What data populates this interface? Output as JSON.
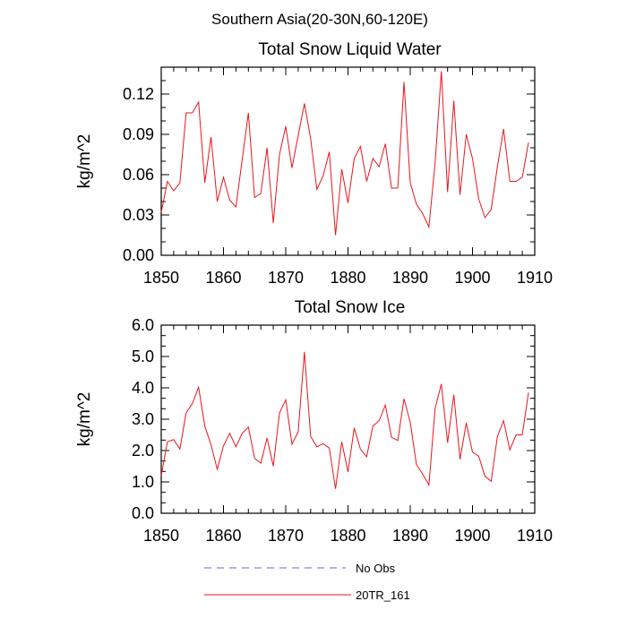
{
  "figure_title": "Southern Asia(20-30N,60-120E)",
  "legend": [
    {
      "label": "No Obs",
      "color": "#6666cc",
      "dash": true
    },
    {
      "label": "20TR_161",
      "color": "#e8161c",
      "dash": false
    }
  ],
  "chart_data": [
    {
      "type": "line",
      "title": "Total Snow Liquid Water",
      "xlabel": "",
      "ylabel": "kg/m^2",
      "xlim": [
        1850,
        1910
      ],
      "ylim": [
        0,
        0.14
      ],
      "xticks": [
        1850,
        1860,
        1870,
        1880,
        1890,
        1900,
        1910
      ],
      "yticks": [
        0,
        0.03,
        0.06,
        0.09,
        0.12
      ],
      "ytick_labels": [
        "0.00",
        "0.03",
        "0.06",
        "0.09",
        "0.12"
      ],
      "series": [
        {
          "name": "20TR_161",
          "color": "#e8161c",
          "x": [
            1850,
            1851,
            1852,
            1853,
            1854,
            1855,
            1856,
            1857,
            1858,
            1859,
            1860,
            1861,
            1862,
            1863,
            1864,
            1865,
            1866,
            1867,
            1868,
            1869,
            1870,
            1871,
            1872,
            1873,
            1874,
            1875,
            1876,
            1877,
            1878,
            1879,
            1880,
            1881,
            1882,
            1883,
            1884,
            1885,
            1886,
            1887,
            1888,
            1889,
            1890,
            1891,
            1892,
            1893,
            1894,
            1895,
            1896,
            1897,
            1898,
            1899,
            1900,
            1901,
            1902,
            1903,
            1904,
            1905,
            1906,
            1907,
            1908,
            1909
          ],
          "y": [
            0.032,
            0.055,
            0.048,
            0.054,
            0.106,
            0.106,
            0.114,
            0.054,
            0.088,
            0.04,
            0.058,
            0.041,
            0.036,
            0.071,
            0.106,
            0.043,
            0.046,
            0.08,
            0.024,
            0.075,
            0.096,
            0.065,
            0.089,
            0.113,
            0.087,
            0.049,
            0.059,
            0.077,
            0.015,
            0.064,
            0.039,
            0.072,
            0.081,
            0.055,
            0.072,
            0.066,
            0.083,
            0.05,
            0.05,
            0.129,
            0.054,
            0.038,
            0.031,
            0.021,
            0.069,
            0.137,
            0.047,
            0.115,
            0.045,
            0.09,
            0.072,
            0.042,
            0.028,
            0.034,
            0.066,
            0.094,
            0.055,
            0.055,
            0.058,
            0.084
          ]
        }
      ]
    },
    {
      "type": "line",
      "title": "Total Snow Ice",
      "xlabel": "",
      "ylabel": "kg/m^2",
      "xlim": [
        1850,
        1910
      ],
      "ylim": [
        0,
        6
      ],
      "xticks": [
        1850,
        1860,
        1870,
        1880,
        1890,
        1900,
        1910
      ],
      "yticks": [
        0,
        1,
        2,
        3,
        4,
        5,
        6
      ],
      "ytick_labels": [
        "0.0",
        "1.0",
        "2.0",
        "3.0",
        "4.0",
        "5.0",
        "6.0"
      ],
      "series": [
        {
          "name": "20TR_161",
          "color": "#e8161c",
          "x": [
            1850,
            1851,
            1852,
            1853,
            1854,
            1855,
            1856,
            1857,
            1858,
            1859,
            1860,
            1861,
            1862,
            1863,
            1864,
            1865,
            1866,
            1867,
            1868,
            1869,
            1870,
            1871,
            1872,
            1873,
            1874,
            1875,
            1876,
            1877,
            1878,
            1879,
            1880,
            1881,
            1882,
            1883,
            1884,
            1885,
            1886,
            1887,
            1888,
            1889,
            1890,
            1891,
            1892,
            1893,
            1894,
            1895,
            1896,
            1897,
            1898,
            1899,
            1900,
            1901,
            1902,
            1903,
            1904,
            1905,
            1906,
            1907,
            1908,
            1909
          ],
          "y": [
            1.2,
            2.28,
            2.35,
            2.05,
            3.2,
            3.5,
            4.02,
            2.78,
            2.18,
            1.4,
            2.15,
            2.55,
            2.12,
            2.55,
            2.75,
            1.75,
            1.6,
            2.4,
            1.5,
            3.2,
            3.62,
            2.2,
            2.6,
            5.15,
            2.45,
            2.12,
            2.22,
            2.08,
            0.78,
            2.28,
            1.32,
            2.72,
            2.05,
            1.8,
            2.78,
            2.95,
            3.45,
            2.42,
            2.32,
            3.65,
            2.9,
            1.55,
            1.25,
            0.9,
            3.35,
            4.12,
            2.25,
            3.78,
            1.72,
            2.88,
            1.95,
            1.82,
            1.18,
            1.02,
            2.45,
            2.95,
            2.02,
            2.5,
            2.5,
            3.85
          ]
        }
      ]
    }
  ]
}
